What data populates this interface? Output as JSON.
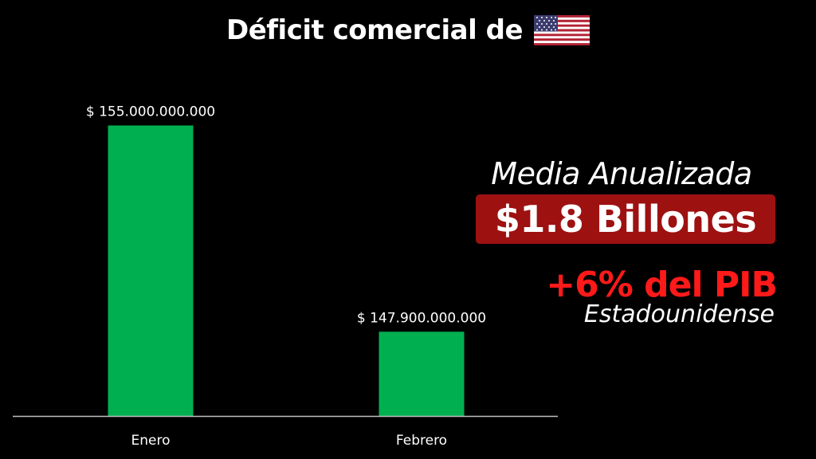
{
  "title": "Déficit comercial de",
  "flag": "us-flag-icon",
  "colors": {
    "bar": "#00b050",
    "background": "#000000",
    "highlight_box": "#9e1111",
    "accent_red": "#ff1a1a",
    "axis": "#bfbfbf"
  },
  "chart_data": {
    "type": "bar",
    "categories": [
      "Enero",
      "Febrero"
    ],
    "values": [
      155000000000,
      147900000000
    ],
    "data_labels": [
      "$ 155.000.000.000",
      "$ 147.900.000.000"
    ],
    "title": "Déficit comercial de",
    "xlabel": "",
    "ylabel": "",
    "ylim": [
      145000000000,
      156000000000
    ],
    "grid": false
  },
  "annotations": {
    "media_label": "Media Anualizada",
    "media_value": "$1.8 Billones",
    "pib_line": "+6% del PIB",
    "pib_sub": "Estadounidense"
  }
}
